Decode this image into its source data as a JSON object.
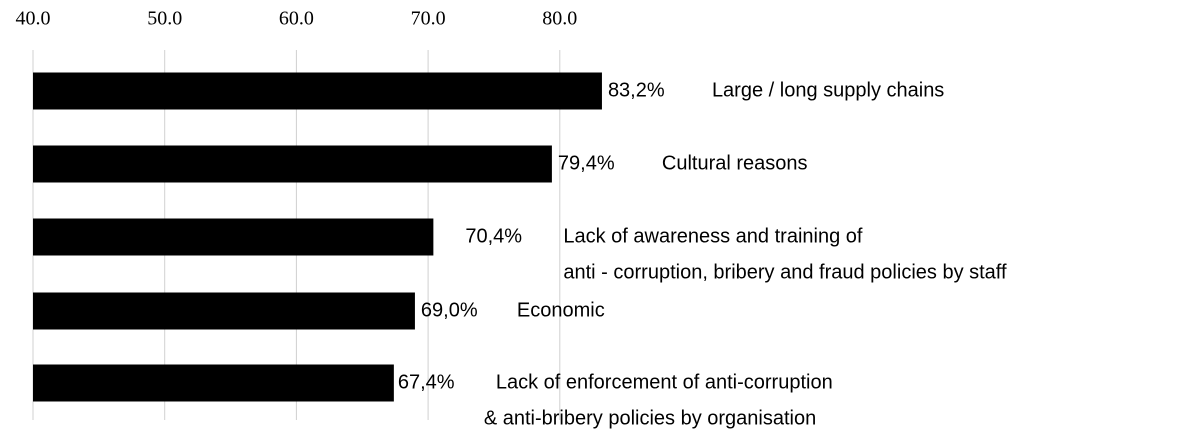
{
  "chart_data": {
    "type": "barh",
    "categories": [
      [
        "Large / long supply chains"
      ],
      [
        "Cultural reasons"
      ],
      [
        "Lack of awareness and training of",
        "anti - corruption, bribery and fraud policies by staff"
      ],
      [
        "Economic"
      ],
      [
        "Lack of enforcement of anti-corruption",
        "& anti-bribery policies by organisation"
      ]
    ],
    "values": [
      83.2,
      79.4,
      70.4,
      69.0,
      67.4
    ],
    "value_labels": [
      "83,2%",
      "79,4%",
      "70,4%",
      "69,0%",
      "67,4%"
    ],
    "color": "#000000",
    "xlim": [
      40,
      90
    ],
    "xticks": [
      {
        "value": 40,
        "label": "40.0"
      },
      {
        "value": 50,
        "label": "50.0"
      },
      {
        "value": 60,
        "label": "60.0"
      },
      {
        "value": 70,
        "label": "70.0"
      },
      {
        "value": 80,
        "label": "80.0"
      }
    ],
    "grid": true
  }
}
